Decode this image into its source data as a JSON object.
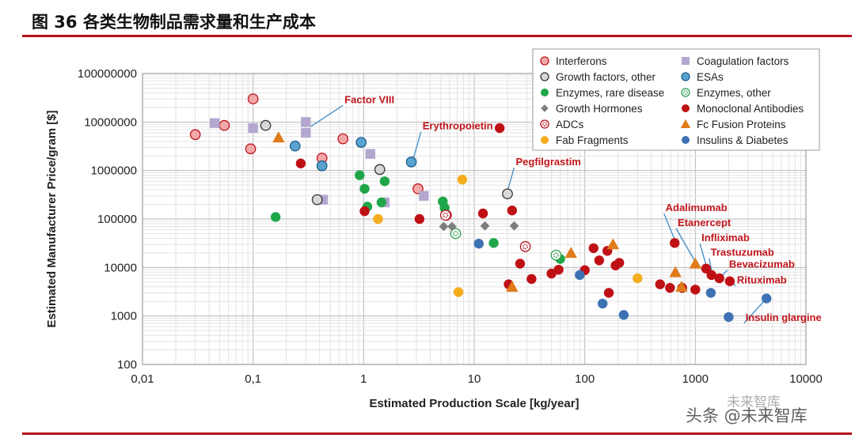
{
  "figure": {
    "title": "图 36 各类生物制品需求量和生产成本",
    "watermark": "头条 @未来智库",
    "watermark_small": "未来智库"
  },
  "colors": {
    "rule": "#b5121b",
    "Interferons": "#f4a9a9",
    "Coagulation factors": "#b3a7cf",
    "Growth factors, other": "#d8d8d8",
    "ESAs": "#5aa2d0",
    "Enzymes, rare disease": "#1fa648",
    "Enzymes, other": "#9fdcb0",
    "Growth Hormones": "#7d7d7d",
    "Monoclonal Antibodies": "#bf1015",
    "ADCs": "#f1c4c4",
    "Fc Fusion Proteins": "#e07b1a",
    "Fab Fragments": "#f5ad1d",
    "Insulins & Diabetes": "#3d72b4",
    "annotation": "#c0161c"
  },
  "chart_data": {
    "type": "scatter",
    "title": "",
    "xlabel": "Estimated Production Scale [kg/year]",
    "ylabel": "Estimated Manufacturer Price/gram [$]",
    "x_scale": "log",
    "y_scale": "log",
    "xlim": [
      0.01,
      10000
    ],
    "ylim": [
      100,
      100000000
    ],
    "x_ticks": [
      "0,01",
      "0,1",
      "1",
      "10",
      "100",
      "1000",
      "10000"
    ],
    "y_ticks": [
      "100",
      "1000",
      "10000",
      "100000",
      "1000000",
      "10000000",
      "100000000"
    ],
    "grid": true,
    "legend_position": "top-right",
    "series": [
      {
        "name": "Interferons",
        "marker": "circle",
        "icon": "circle-icon",
        "points": [
          [
            0.03,
            5500000
          ],
          [
            0.055,
            8500000
          ],
          [
            0.095,
            2800000
          ],
          [
            0.1,
            30000000
          ],
          [
            0.42,
            1800000
          ],
          [
            0.65,
            4500000
          ],
          [
            3.1,
            420000
          ],
          [
            5.6,
            120000
          ]
        ]
      },
      {
        "name": "Coagulation factors",
        "marker": "square",
        "icon": "square-icon",
        "points": [
          [
            0.045,
            9500000
          ],
          [
            0.1,
            7500000
          ],
          [
            0.3,
            10000000
          ],
          [
            0.3,
            6000000
          ],
          [
            0.43,
            250000
          ],
          [
            1.15,
            2200000
          ],
          [
            1.55,
            220000
          ],
          [
            3.5,
            300000
          ]
        ]
      },
      {
        "name": "Growth factors, other",
        "marker": "circle",
        "icon": "circle-icon",
        "points": [
          [
            0.13,
            8500000
          ],
          [
            0.38,
            250000
          ],
          [
            1.4,
            1050000
          ],
          [
            20,
            330000
          ]
        ]
      },
      {
        "name": "ESAs",
        "marker": "circle",
        "icon": "circle-icon",
        "points": [
          [
            0.24,
            3200000
          ],
          [
            0.42,
            1250000
          ],
          [
            0.95,
            3800000
          ],
          [
            2.7,
            1500000
          ]
        ]
      },
      {
        "name": "Enzymes, rare disease",
        "marker": "circle",
        "icon": "circle-icon",
        "points": [
          [
            0.16,
            110000
          ],
          [
            0.92,
            800000
          ],
          [
            1.02,
            420000
          ],
          [
            1.08,
            180000
          ],
          [
            1.55,
            600000
          ],
          [
            1.45,
            220000
          ],
          [
            5.2,
            230000
          ],
          [
            5.4,
            170000
          ],
          [
            15,
            32000
          ],
          [
            60,
            15000
          ]
        ]
      },
      {
        "name": "Enzymes, other",
        "marker": "circle-hatched",
        "icon": "circle-hatched-icon",
        "points": [
          [
            6.8,
            50000
          ],
          [
            55,
            18000
          ]
        ]
      },
      {
        "name": "Growth Hormones",
        "marker": "diamond",
        "icon": "diamond-icon",
        "points": [
          [
            5.3,
            70000
          ],
          [
            6.3,
            70000
          ],
          [
            12.5,
            72000
          ],
          [
            23,
            72000
          ]
        ]
      },
      {
        "name": "Monoclonal Antibodies",
        "marker": "circle",
        "icon": "circle-icon",
        "points": [
          [
            0.27,
            1400000
          ],
          [
            1.02,
            145000
          ],
          [
            3.2,
            100000
          ],
          [
            12,
            130000
          ],
          [
            22,
            150000
          ],
          [
            17,
            7500000
          ],
          [
            20.5,
            4500
          ],
          [
            26,
            12000
          ],
          [
            33,
            5800
          ],
          [
            50,
            7500
          ],
          [
            58,
            9000
          ],
          [
            100,
            8800
          ],
          [
            120,
            25000
          ],
          [
            135,
            14000
          ],
          [
            160,
            22000
          ],
          [
            165,
            3000
          ],
          [
            190,
            11000
          ],
          [
            205,
            12500
          ],
          [
            480,
            4500
          ],
          [
            590,
            3800
          ],
          [
            650,
            32000
          ],
          [
            760,
            3800
          ],
          [
            1000,
            3500
          ],
          [
            1250,
            9500
          ],
          [
            1400,
            7000
          ],
          [
            1650,
            6000
          ],
          [
            2050,
            5200
          ]
        ]
      },
      {
        "name": "ADCs",
        "marker": "circle-hatched",
        "icon": "circle-hatched-icon",
        "points": [
          [
            29,
            27000
          ],
          [
            5.5,
            120000
          ]
        ]
      },
      {
        "name": "Fc Fusion Proteins",
        "marker": "triangle",
        "icon": "triangle-icon",
        "points": [
          [
            0.17,
            4800000
          ],
          [
            22,
            4000
          ],
          [
            75,
            20000
          ],
          [
            180,
            30000
          ],
          [
            660,
            8000
          ],
          [
            750,
            4000
          ],
          [
            1000,
            12000
          ]
        ]
      },
      {
        "name": "Fab Fragments",
        "marker": "circle",
        "icon": "circle-icon",
        "points": [
          [
            1.35,
            100000
          ],
          [
            7.2,
            3100
          ],
          [
            7.8,
            650000
          ],
          [
            300,
            6000
          ]
        ]
      },
      {
        "name": "Insulins & Diabetes",
        "marker": "circle",
        "icon": "circle-icon",
        "points": [
          [
            11,
            31000
          ],
          [
            90,
            7000
          ],
          [
            145,
            1800
          ],
          [
            225,
            1050
          ],
          [
            1380,
            3000
          ],
          [
            2000,
            950
          ],
          [
            4400,
            2300
          ]
        ]
      }
    ],
    "annotations": [
      {
        "text": "Factor VIII",
        "x": 0.33,
        "y": 8000000,
        "lx": 0.65,
        "ly": 22000000
      },
      {
        "text": "Erythropoietin",
        "x": 2.8,
        "y": 1700000,
        "lx": 3.3,
        "ly": 6300000
      },
      {
        "text": "Pegfilgrastim",
        "x": 20,
        "y": 380000,
        "lx": 23,
        "ly": 1150000
      },
      {
        "text": "Adalimumab",
        "x": 665,
        "y": 33000,
        "lx": 520,
        "ly": 130000
      },
      {
        "text": "Etanercept",
        "x": 1010,
        "y": 12500,
        "lx": 670,
        "ly": 64000
      },
      {
        "text": "Infliximab",
        "x": 1270,
        "y": 10000,
        "lx": 1100,
        "ly": 31000
      },
      {
        "text": "Trastuzumab",
        "x": 1420,
        "y": 7500,
        "lx": 1330,
        "ly": 15500
      },
      {
        "text": "Bevacizumab",
        "x": 1680,
        "y": 6300,
        "lx": 1950,
        "ly": 8800
      },
      {
        "text": "Rituximab",
        "x": 2100,
        "y": 5300,
        "lx": 2300,
        "ly": 4200
      },
      {
        "text": "Insulin glargine",
        "x": 4400,
        "y": 2300,
        "lx": 2750,
        "ly": 710
      }
    ]
  }
}
